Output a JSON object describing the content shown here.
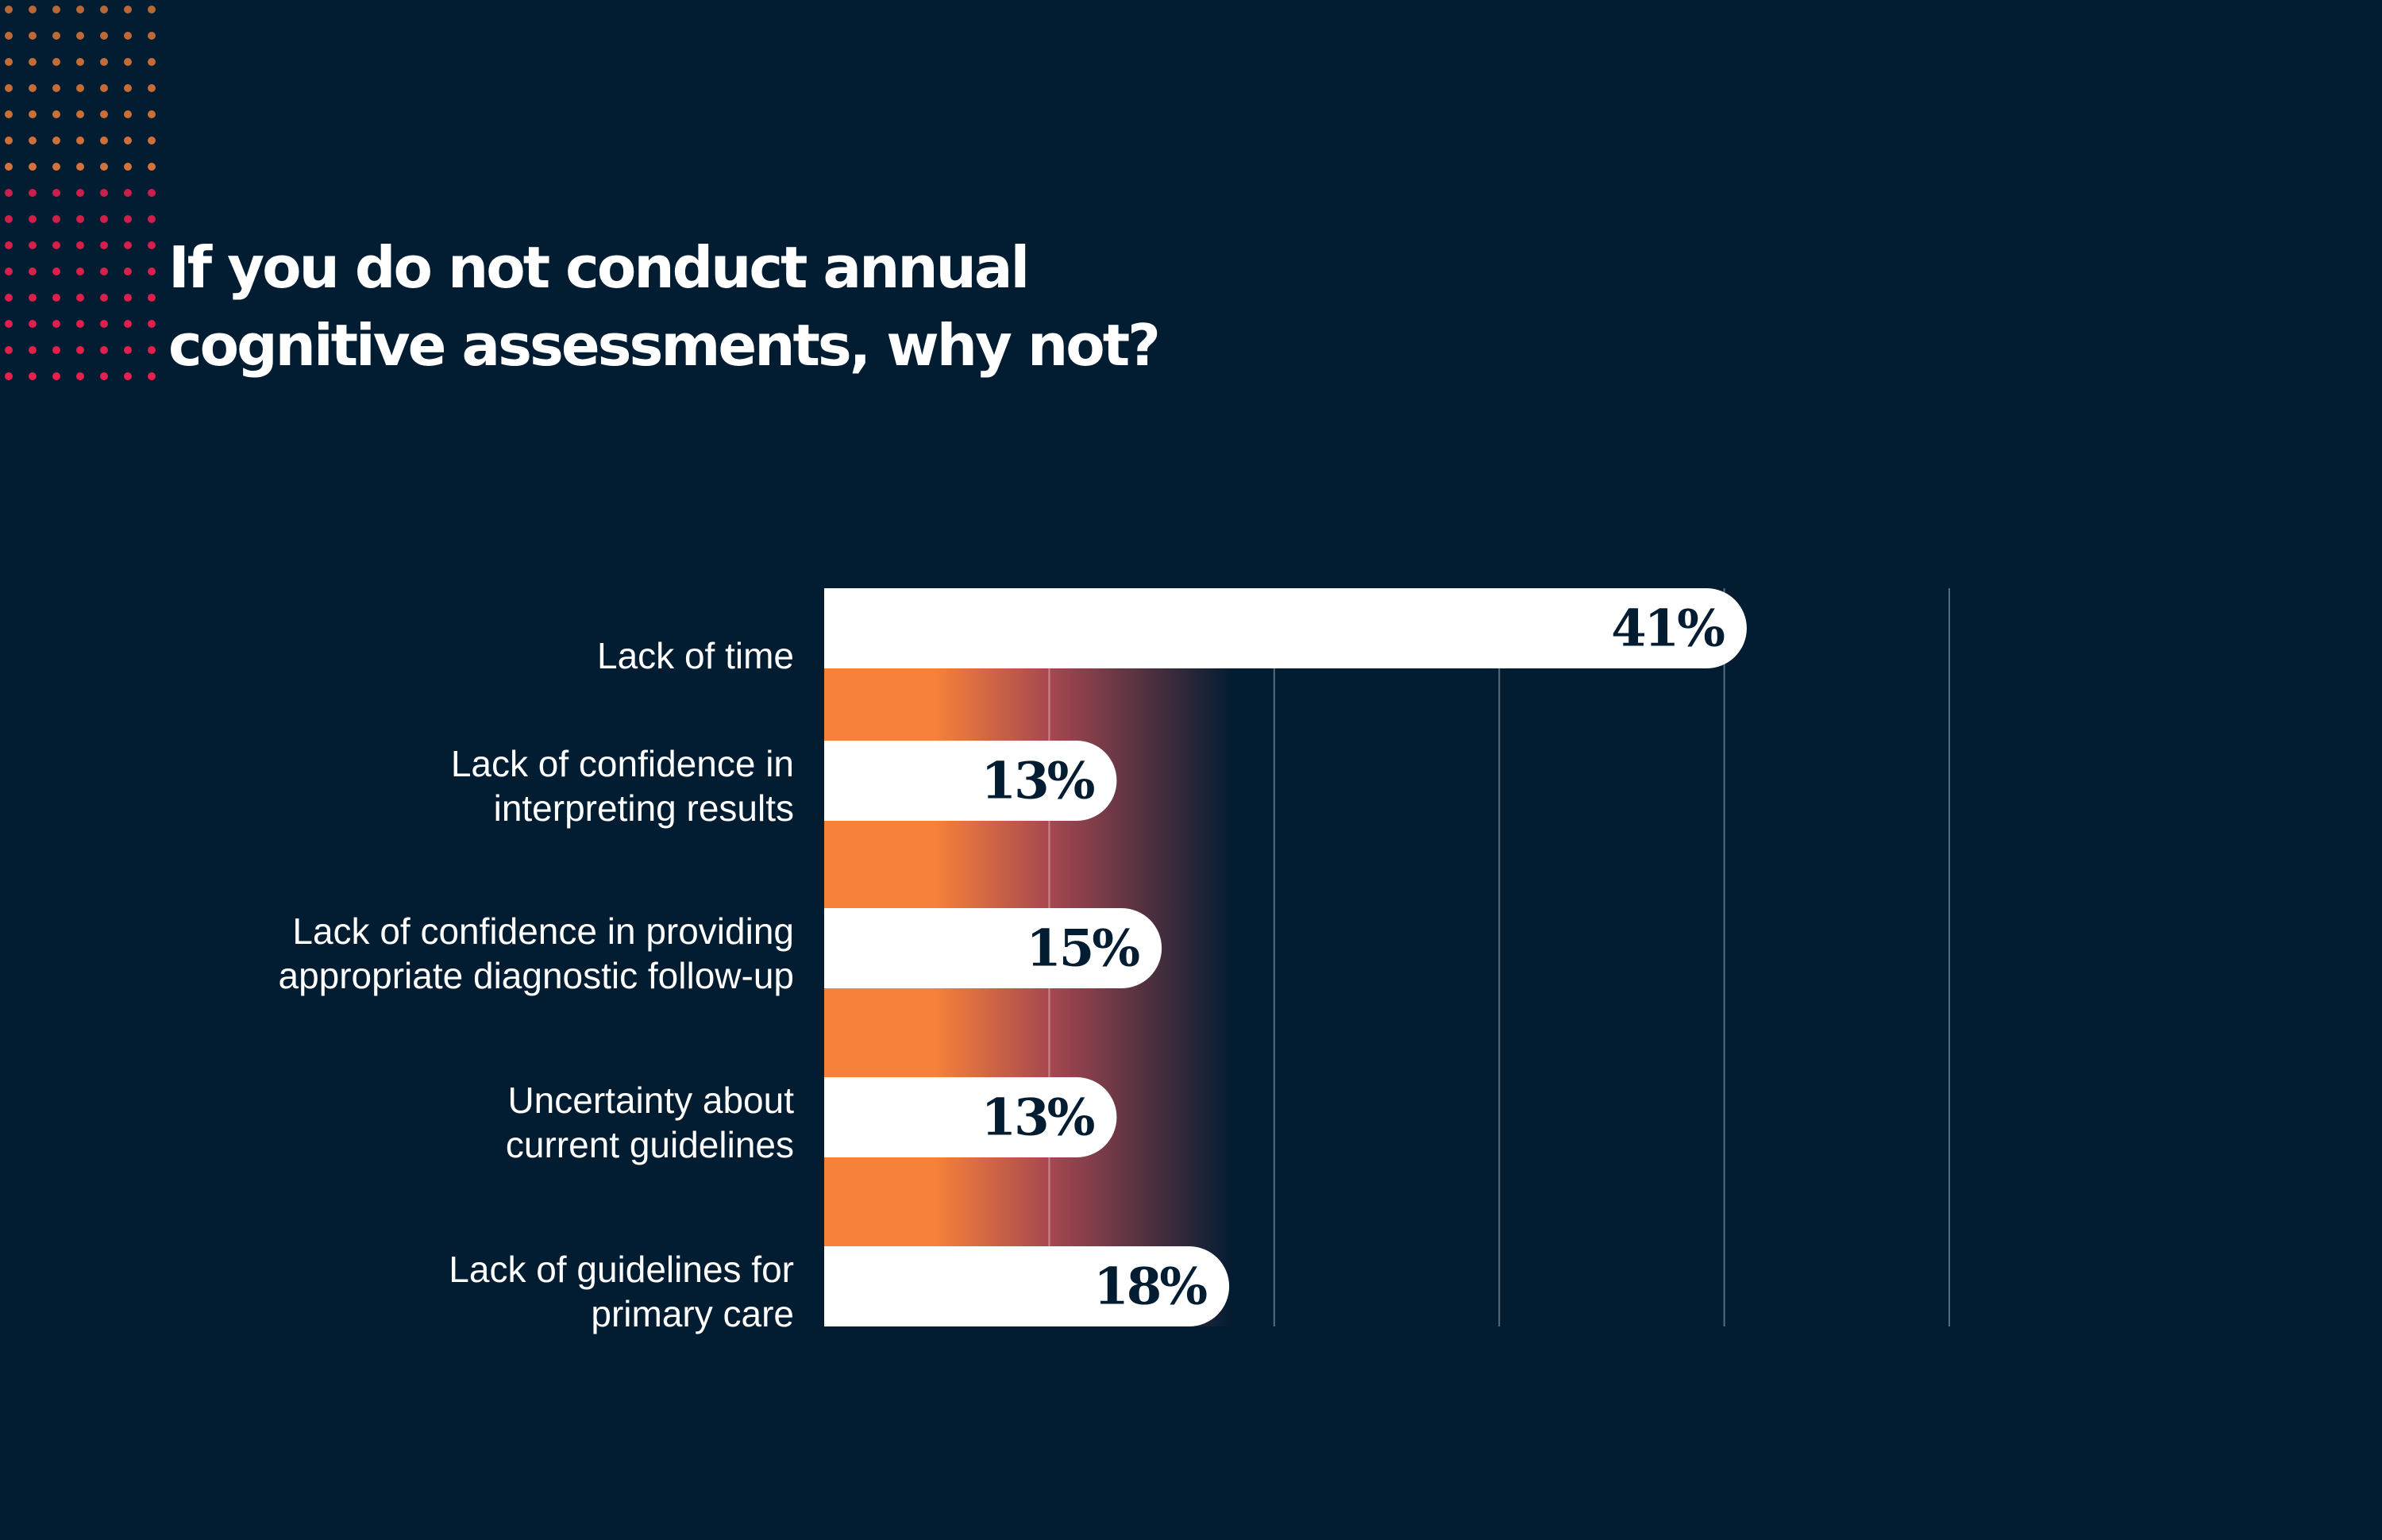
{
  "title": {
    "line1": "If you do not conduct annual",
    "line2": "cognitive assessments, why not?"
  },
  "colors": {
    "background": "#021c31",
    "bar": "#ffffff",
    "value_text": "#021c31",
    "label_text": "#ffffff",
    "gradient_start": "#f6813a",
    "gradient_mid": "#a74850",
    "gradient_end": "#021c31",
    "dot_top": "#f6813a",
    "dot_bottom": "#e8204f"
  },
  "chart_data": {
    "type": "bar",
    "orientation": "horizontal",
    "title": "If you do not conduct annual cognitive assessments, why not?",
    "categories": [
      [
        "Lack of time"
      ],
      [
        "Lack of confidence in",
        "interpreting results"
      ],
      [
        "Lack of confidence in providing",
        "appropriate diagnostic follow-up"
      ],
      [
        "Uncertainty about",
        "current guidelines"
      ],
      [
        "Lack of guidelines for",
        "primary care"
      ]
    ],
    "values": [
      41,
      13,
      15,
      13,
      18
    ],
    "value_labels": [
      "41%",
      "13%",
      "15%",
      "13%",
      "18%"
    ],
    "xlim": [
      0,
      50
    ],
    "grid_ticks": [
      10,
      20,
      30,
      40,
      50
    ],
    "xlabel": "",
    "ylabel": "",
    "legend": "none"
  }
}
